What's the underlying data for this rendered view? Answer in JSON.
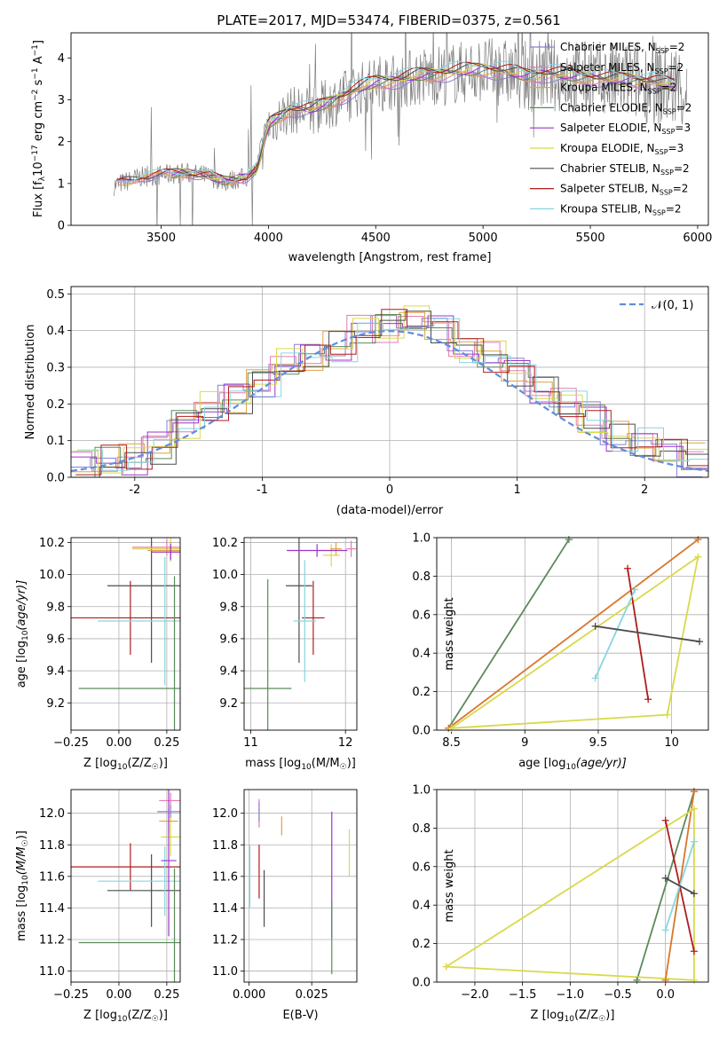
{
  "figure": {
    "title": "PLATE=2017, MJD=53474, FIBERID=0375, z=0.561"
  },
  "colors": {
    "Chabrier MILES": "#8a7fd6",
    "Salpeter MILES": "#e67ab3",
    "Kroupa MILES": "#e0a240",
    "Chabrier ELODIE": "#5b8a5b",
    "Salpeter ELODIE": "#9b35c9",
    "Kroupa ELODIE": "#d9d94a",
    "Chabrier STELIB": "#4d4d4d",
    "Salpeter STELIB": "#b01c1c",
    "Kroupa STELIB": "#86d6e0",
    "data": "#7f7f7f",
    "normal": "#5b8ede",
    "orange": "#d9762b"
  },
  "chart_data": [
    {
      "id": "spectrum",
      "type": "line",
      "title": "PLATE=2017, MJD=53474, FIBERID=0375, z=0.561",
      "xlabel": "wavelength [Angstrom, rest frame]",
      "ylabel_main": "Flux [f",
      "ylabel_sub": "λ",
      "ylabel_rest": "10",
      "ylabel_exp1": "−17",
      "ylabel_mid": " erg cm",
      "ylabel_exp2": "−2",
      "ylabel_s": " s",
      "ylabel_exp3": "−1",
      "ylabel_a": " A",
      "ylabel_exp4": "−1",
      "ylabel_end": "]",
      "xlim": [
        3080,
        6050
      ],
      "ylim": [
        0,
        4.6
      ],
      "xticks": [
        3500,
        4000,
        4500,
        5000,
        5500,
        6000
      ],
      "yticks": [
        0,
        1,
        2,
        3,
        4
      ],
      "continuum": [
        [
          3280,
          0.95
        ],
        [
          3400,
          1.15
        ],
        [
          3500,
          1.2
        ],
        [
          3600,
          1.25
        ],
        [
          3700,
          1.2
        ],
        [
          3800,
          1.05
        ],
        [
          3900,
          1.15
        ],
        [
          3950,
          1.35
        ],
        [
          4000,
          2.4
        ],
        [
          4100,
          2.75
        ],
        [
          4200,
          2.75
        ],
        [
          4300,
          2.95
        ],
        [
          4400,
          3.2
        ],
        [
          4500,
          3.4
        ],
        [
          4600,
          3.45
        ],
        [
          4700,
          3.55
        ],
        [
          4800,
          3.6
        ],
        [
          4900,
          3.65
        ],
        [
          5000,
          3.7
        ],
        [
          5100,
          3.65
        ],
        [
          5200,
          3.55
        ],
        [
          5300,
          3.6
        ],
        [
          5400,
          3.55
        ],
        [
          5500,
          3.5
        ],
        [
          5600,
          3.45
        ],
        [
          5700,
          3.45
        ],
        [
          5800,
          3.4
        ],
        [
          5900,
          3.3
        ]
      ],
      "legend": [
        {
          "main": "Chabrier MILES, N",
          "sub": "SSP",
          "tail": "=2",
          "color_key": "Chabrier MILES"
        },
        {
          "main": "Salpeter MILES, N",
          "sub": "SSP",
          "tail": "=2",
          "color_key": "Salpeter MILES"
        },
        {
          "main": "Kroupa MILES, N",
          "sub": "SSP",
          "tail": "=2",
          "color_key": "Kroupa MILES"
        },
        {
          "main": "Chabrier ELODIE, N",
          "sub": "SSP",
          "tail": "=2",
          "color_key": "Chabrier ELODIE"
        },
        {
          "main": "Salpeter ELODIE, N",
          "sub": "SSP",
          "tail": "=3",
          "color_key": "Salpeter ELODIE"
        },
        {
          "main": "Kroupa ELODIE, N",
          "sub": "SSP",
          "tail": "=3",
          "color_key": "Kroupa ELODIE"
        },
        {
          "main": "Chabrier STELIB, N",
          "sub": "SSP",
          "tail": "=2",
          "color_key": "Chabrier STELIB"
        },
        {
          "main": "Salpeter STELIB, N",
          "sub": "SSP",
          "tail": "=2",
          "color_key": "Salpeter STELIB"
        },
        {
          "main": "Kroupa STELIB, N",
          "sub": "SSP",
          "tail": "=2",
          "color_key": "Kroupa STELIB"
        }
      ]
    },
    {
      "id": "residuals",
      "type": "bar",
      "xlabel": "(data-model)/error",
      "ylabel": "Normed distribution",
      "xlim": [
        -2.5,
        2.5
      ],
      "ylim": [
        0,
        0.52
      ],
      "xticks": [
        -2,
        -1,
        0,
        1,
        2
      ],
      "yticks": [
        0.0,
        0.1,
        0.2,
        0.3,
        0.4,
        0.5
      ],
      "grid": true,
      "legend_label": "𝒩(0, 1)",
      "legend_position": "top-right",
      "hist_centers": [
        -2.4,
        -2.2,
        -2.0,
        -1.8,
        -1.6,
        -1.4,
        -1.2,
        -1.0,
        -0.8,
        -0.6,
        -0.4,
        -0.2,
        0.0,
        0.2,
        0.4,
        0.6,
        0.8,
        1.0,
        1.2,
        1.4,
        1.6,
        1.8,
        2.0,
        2.2,
        2.4
      ],
      "hist_values": [
        0.03,
        0.04,
        0.05,
        0.08,
        0.15,
        0.19,
        0.22,
        0.26,
        0.31,
        0.33,
        0.36,
        0.4,
        0.41,
        0.43,
        0.41,
        0.35,
        0.33,
        0.29,
        0.24,
        0.2,
        0.16,
        0.11,
        0.09,
        0.07,
        0.05
      ],
      "series_keys": [
        "Chabrier MILES",
        "Salpeter MILES",
        "Kroupa MILES",
        "Chabrier ELODIE",
        "Salpeter ELODIE",
        "Kroupa ELODIE",
        "Chabrier STELIB",
        "Salpeter STELIB",
        "Kroupa STELIB"
      ]
    },
    {
      "id": "age_vs_Z",
      "type": "scatter",
      "xlabel": "Z [log",
      "xlabel_sub": "10",
      "xlabel_rest": "(Z/Z",
      "xlabel_sun": "☉",
      "xlabel_end": ")]",
      "ylabel": "age  [log",
      "ylabel_sub": "10",
      "ylabel_rest": "(age/yr)]",
      "xlim": [
        -0.25,
        0.32
      ],
      "ylim": [
        9.03,
        10.23
      ],
      "xticks": [
        -0.25,
        0.0,
        0.25
      ],
      "xticklabels": [
        "−0.25",
        "0.00",
        "0.25"
      ],
      "yticks": [
        9.2,
        9.4,
        9.6,
        9.8,
        10.0,
        10.2
      ],
      "points": [
        {
          "x": 0.06,
          "y": 9.73,
          "xerr": 0.35,
          "yerr": 0.23,
          "key": "Salpeter STELIB"
        },
        {
          "x": 0.17,
          "y": 9.93,
          "xerr": 0.23,
          "yerr": 0.48,
          "key": "Chabrier STELIB"
        },
        {
          "x": 0.24,
          "y": 9.71,
          "xerr": 0.35,
          "yerr": 0.4,
          "key": "Kroupa STELIB"
        },
        {
          "x": 0.29,
          "y": 9.29,
          "xerr": 0.5,
          "yerr": 0.7,
          "key": "Chabrier ELODIE"
        },
        {
          "x": 0.27,
          "y": 10.16,
          "xerr": 0.2,
          "yerr": 0.08,
          "key": "Kroupa ELODIE"
        },
        {
          "x": 0.25,
          "y": 10.17,
          "xerr": 0.18,
          "yerr": 0.05,
          "key": "Salpeter MILES"
        },
        {
          "x": 0.27,
          "y": 10.15,
          "xerr": 0.12,
          "yerr": 0.05,
          "key": "Kroupa MILES"
        },
        {
          "x": 0.27,
          "y": 10.14,
          "xerr": 0.1,
          "yerr": 0.05,
          "key": "Salpeter ELODIE"
        }
      ]
    },
    {
      "id": "age_vs_mass",
      "type": "scatter",
      "xlabel": "mass [log",
      "xlabel_sub": "10",
      "xlabel_rest": "(M/M",
      "xlabel_sun": "☉",
      "xlabel_end": ")]",
      "xlim": [
        10.93,
        12.12
      ],
      "ylim": [
        9.03,
        10.23
      ],
      "xticks": [
        11,
        12
      ],
      "yticks": [
        9.2,
        9.4,
        9.6,
        9.8,
        10.0,
        10.2
      ],
      "points": [
        {
          "x": 11.66,
          "y": 9.73,
          "xerr": 0.12,
          "yerr": 0.23,
          "key": "Salpeter STELIB"
        },
        {
          "x": 11.51,
          "y": 9.93,
          "xerr": 0.14,
          "yerr": 0.48,
          "key": "Chabrier STELIB"
        },
        {
          "x": 11.57,
          "y": 9.71,
          "xerr": 0.12,
          "yerr": 0.38,
          "key": "Kroupa STELIB"
        },
        {
          "x": 11.18,
          "y": 9.29,
          "xerr": 0.25,
          "yerr": 0.68,
          "key": "Chabrier ELODIE"
        },
        {
          "x": 11.85,
          "y": 10.12,
          "xerr": 0.09,
          "yerr": 0.07,
          "key": "Kroupa ELODIE"
        },
        {
          "x": 12.06,
          "y": 10.16,
          "xerr": 0.05,
          "yerr": 0.05,
          "key": "Salpeter MILES"
        },
        {
          "x": 11.9,
          "y": 10.16,
          "xerr": 0.06,
          "yerr": 0.04,
          "key": "Kroupa MILES"
        },
        {
          "x": 11.7,
          "y": 10.15,
          "xerr": 0.32,
          "yerr": 0.04,
          "key": "Salpeter ELODIE"
        }
      ]
    },
    {
      "id": "weight_vs_age",
      "type": "line",
      "xlabel": "age  [log",
      "xlabel_sub": "10",
      "xlabel_rest": "(age/yr)]",
      "ylabel": "mass weight",
      "xlim": [
        8.4,
        10.25
      ],
      "ylim": [
        0,
        1.0
      ],
      "xticks": [
        8.5,
        9.0,
        9.5,
        10.0
      ],
      "yticks": [
        0.0,
        0.2,
        0.4,
        0.6,
        0.8,
        1.0
      ],
      "lines": [
        {
          "key": "Chabrier ELODIE",
          "x": [
            8.48,
            9.3
          ],
          "y": [
            0.01,
            0.99
          ]
        },
        {
          "key": "orange",
          "x": [
            8.48,
            10.18
          ],
          "y": [
            0.01,
            0.99
          ]
        },
        {
          "key": "Kroupa ELODIE",
          "x": [
            8.5,
            9.97,
            10.18,
            8.5
          ],
          "y": [
            0.01,
            0.08,
            0.9,
            0.01
          ]
        },
        {
          "key": "Salpeter STELIB",
          "x": [
            9.7,
            9.84
          ],
          "y": [
            0.84,
            0.16
          ]
        },
        {
          "key": "Kroupa STELIB",
          "x": [
            9.48,
            9.75
          ],
          "y": [
            0.27,
            0.73
          ]
        },
        {
          "key": "Chabrier STELIB",
          "x": [
            9.48,
            10.19
          ],
          "y": [
            0.54,
            0.46
          ]
        }
      ]
    },
    {
      "id": "mass_vs_Z",
      "type": "scatter",
      "xlabel": "Z [log",
      "xlabel_sub": "10",
      "xlabel_rest": "(Z/Z",
      "xlabel_sun": "☉",
      "xlabel_end": ")]",
      "ylabel": "mass [log",
      "ylabel_sub": "10",
      "ylabel_rest": "(M/M",
      "ylabel_sun": "☉",
      "ylabel_end": ")]",
      "xlim": [
        -0.25,
        0.32
      ],
      "ylim": [
        10.93,
        12.15
      ],
      "xticks": [
        -0.25,
        0.0,
        0.25
      ],
      "xticklabels": [
        "−0.25",
        "0.00",
        "0.25"
      ],
      "yticks": [
        11.0,
        11.2,
        11.4,
        11.6,
        11.8,
        12.0
      ],
      "points": [
        {
          "x": 0.06,
          "y": 11.66,
          "xerr": 0.35,
          "yerr": 0.15,
          "key": "Salpeter STELIB"
        },
        {
          "x": 0.17,
          "y": 11.51,
          "xerr": 0.23,
          "yerr": 0.23,
          "key": "Chabrier STELIB"
        },
        {
          "x": 0.24,
          "y": 11.57,
          "xerr": 0.35,
          "yerr": 0.22,
          "key": "Kroupa STELIB"
        },
        {
          "x": 0.29,
          "y": 11.18,
          "xerr": 0.5,
          "yerr": 0.47,
          "key": "Chabrier ELODIE"
        },
        {
          "x": 0.27,
          "y": 11.85,
          "xerr": 0.05,
          "yerr": 0.12,
          "key": "Kroupa ELODIE"
        },
        {
          "x": 0.27,
          "y": 12.08,
          "xerr": 0.06,
          "yerr": 0.05,
          "key": "Salpeter MILES"
        },
        {
          "x": 0.26,
          "y": 11.95,
          "xerr": 0.05,
          "yerr": 0.08,
          "key": "Kroupa MILES"
        },
        {
          "x": 0.26,
          "y": 11.7,
          "xerr": 0.04,
          "yerr": 0.48,
          "key": "Salpeter ELODIE"
        },
        {
          "x": 0.27,
          "y": 12.01,
          "xerr": 0.07,
          "yerr": 0.04,
          "key": "Chabrier MILES"
        }
      ]
    },
    {
      "id": "mass_vs_EBV",
      "type": "scatter",
      "xlabel": "E(B-V)",
      "xlim": [
        -0.002,
        0.043
      ],
      "ylim": [
        10.93,
        12.15
      ],
      "xticks": [
        0.0,
        0.025
      ],
      "xticklabels": [
        "0.000",
        "0.025"
      ],
      "yticks": [
        11.0,
        11.2,
        11.4,
        11.6,
        11.8,
        12.0
      ],
      "points": [
        {
          "x": 0.004,
          "y": 12.0,
          "xerr": 0.0,
          "yerr": 0.09,
          "key": "Salpeter MILES"
        },
        {
          "x": 0.004,
          "y": 12.01,
          "xerr": 0.0,
          "yerr": 0.06,
          "key": "Chabrier MILES"
        },
        {
          "x": 0.013,
          "y": 11.92,
          "xerr": 0.0,
          "yerr": 0.06,
          "key": "Kroupa MILES"
        },
        {
          "x": 0.004,
          "y": 11.63,
          "xerr": 0.0,
          "yerr": 0.17,
          "key": "Salpeter STELIB"
        },
        {
          "x": 0.006,
          "y": 11.46,
          "xerr": 0.0,
          "yerr": 0.18,
          "key": "Chabrier STELIB"
        },
        {
          "x": 0.033,
          "y": 11.61,
          "xerr": 0.0,
          "yerr": 0.4,
          "key": "Salpeter ELODIE"
        },
        {
          "x": 0.033,
          "y": 11.21,
          "xerr": 0.0,
          "yerr": 0.23,
          "key": "Chabrier ELODIE"
        },
        {
          "x": 0.04,
          "y": 11.75,
          "xerr": 0.0,
          "yerr": 0.15,
          "key": "Kroupa ELODIE"
        },
        {
          "x": 0.0003,
          "y": 11.6,
          "xerr": 0.0,
          "yerr": 0.2,
          "key": "Kroupa STELIB"
        }
      ]
    },
    {
      "id": "weight_vs_Z",
      "type": "line",
      "xlabel": "Z [log",
      "xlabel_sub": "10",
      "xlabel_rest": "(Z/Z",
      "xlabel_sun": "☉",
      "xlabel_end": ")]",
      "ylabel": "mass weight",
      "xlim": [
        -2.4,
        0.45
      ],
      "ylim": [
        0,
        1.0
      ],
      "xticks": [
        -2.0,
        -1.5,
        -1.0,
        -0.5,
        0.0
      ],
      "xticklabels": [
        "−2.0",
        "−1.5",
        "−1.0",
        "−0.5",
        "0.0"
      ],
      "yticks": [
        0.0,
        0.2,
        0.4,
        0.6,
        0.8,
        1.0
      ],
      "lines": [
        {
          "key": "Chabrier ELODIE",
          "x": [
            -0.3,
            0.3
          ],
          "y": [
            0.01,
            0.99
          ]
        },
        {
          "key": "orange",
          "x": [
            0.0,
            0.3
          ],
          "y": [
            0.01,
            0.99
          ]
        },
        {
          "key": "Kroupa ELODIE",
          "x": [
            -2.3,
            0.3,
            0.3,
            -2.3
          ],
          "y": [
            0.08,
            0.9,
            0.01,
            0.08
          ]
        },
        {
          "key": "Salpeter STELIB",
          "x": [
            0.0,
            0.3
          ],
          "y": [
            0.84,
            0.16
          ]
        },
        {
          "key": "Kroupa STELIB",
          "x": [
            0.0,
            0.3
          ],
          "y": [
            0.27,
            0.73
          ]
        },
        {
          "key": "Chabrier STELIB",
          "x": [
            0.0,
            0.3
          ],
          "y": [
            0.54,
            0.46
          ]
        }
      ]
    }
  ]
}
